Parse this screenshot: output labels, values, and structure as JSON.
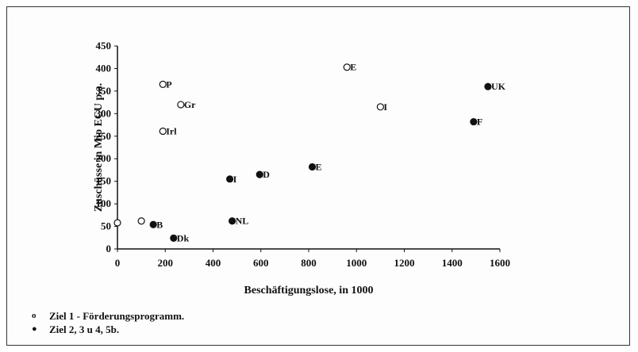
{
  "chart_data": {
    "type": "scatter",
    "xlabel": "Beschäftigungslose, in 1000",
    "ylabel": "Zuschüsse in Mio ECU p.a.",
    "xlim": [
      0,
      1600
    ],
    "ylim": [
      0,
      450
    ],
    "xticks": [
      "0",
      "200",
      "400",
      "600",
      "800",
      "1000",
      "1200",
      "1400",
      "1600"
    ],
    "yticks": [
      "0",
      "50",
      "100",
      "150",
      "200",
      "250",
      "300",
      "350",
      "400",
      "450"
    ],
    "grid": false,
    "legend_position": "bottom-left",
    "series": [
      {
        "name": "Ziel 1 - Förderungsprogramm.",
        "marker": "open-circle",
        "color": "#111111",
        "points": [
          {
            "x": 0,
            "y": 58,
            "label": ""
          },
          {
            "x": 100,
            "y": 62,
            "label": ""
          },
          {
            "x": 190,
            "y": 365,
            "label": "P"
          },
          {
            "x": 265,
            "y": 320,
            "label": "Gr"
          },
          {
            "x": 190,
            "y": 261,
            "label": "Irl"
          },
          {
            "x": 960,
            "y": 403,
            "label": "E"
          },
          {
            "x": 1100,
            "y": 315,
            "label": "I"
          }
        ]
      },
      {
        "name": "Ziel 2, 3 u 4, 5b.",
        "marker": "filled-circle",
        "color": "#111111",
        "points": [
          {
            "x": 150,
            "y": 54,
            "label": "B"
          },
          {
            "x": 235,
            "y": 24,
            "label": "Dk"
          },
          {
            "x": 470,
            "y": 155,
            "label": "I"
          },
          {
            "x": 480,
            "y": 62,
            "label": "NL"
          },
          {
            "x": 595,
            "y": 165,
            "label": "D"
          },
          {
            "x": 815,
            "y": 182,
            "label": "E"
          },
          {
            "x": 1490,
            "y": 282,
            "label": "F"
          },
          {
            "x": 1550,
            "y": 360,
            "label": "UK"
          }
        ]
      }
    ]
  },
  "legend": {
    "items": [
      {
        "symbol": "o",
        "label": "Ziel 1 - Förderungsprogramm."
      },
      {
        "symbol": "●",
        "label": "Ziel 2, 3 u 4, 5b."
      }
    ]
  }
}
